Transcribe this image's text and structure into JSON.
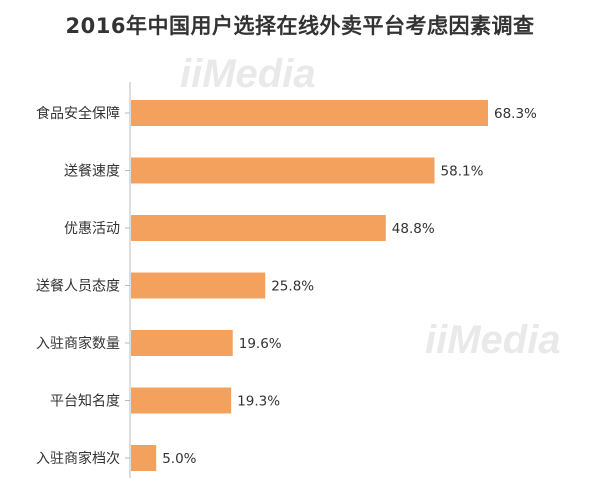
{
  "chart_data": {
    "type": "bar",
    "orientation": "horizontal",
    "title": "2016年中国用户选择在线外卖平台考虑因素调查",
    "categories": [
      "食品安全保障",
      "送餐速度",
      "优惠活动",
      "送餐人员态度",
      "入驻商家数量",
      "平台知名度",
      "入驻商家档次"
    ],
    "values": [
      68.3,
      58.1,
      48.8,
      25.8,
      19.6,
      19.3,
      5.0
    ],
    "data_labels": [
      "68.3%",
      "58.1%",
      "48.8%",
      "25.8%",
      "19.6%",
      "19.3%",
      "5.0%"
    ],
    "unit": "%",
    "xlim": [
      0,
      68.3
    ],
    "grid": false,
    "legend": "none",
    "bar_color": "#f4a15d",
    "axis_color": "#bbbbbb"
  },
  "watermark": {
    "brand": "iiMedia"
  }
}
